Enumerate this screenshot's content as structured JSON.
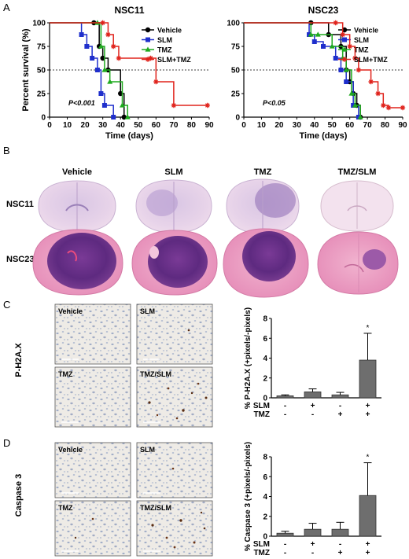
{
  "panels": {
    "A": {
      "letter": "A"
    },
    "B": {
      "letter": "B",
      "columns": [
        "Vehicle",
        "SLM",
        "TMZ",
        "TMZ/SLM"
      ],
      "rows": [
        "NSC11",
        "NSC23"
      ]
    },
    "C": {
      "letter": "C",
      "row_label": "P-H2A.X",
      "tiles": [
        "Vehicle",
        "SLM",
        "TMZ",
        "TMZ/SLM"
      ]
    },
    "D": {
      "letter": "D",
      "row_label": "Caspase 3",
      "tiles": [
        "Vehicle",
        "SLM",
        "TMZ",
        "TMZ/SLM"
      ]
    }
  },
  "colors": {
    "Vehicle": "#000000",
    "SLM": "#1f2fcc",
    "TMZ": "#1faa1f",
    "SLM+TMZ": "#e0231c",
    "bar": "#6e6e6e"
  },
  "chart_data": [
    {
      "type": "line",
      "title": "NSC11",
      "xlabel": "Time (days)",
      "ylabel": "Percent survival (%)",
      "xlim": [
        0,
        90
      ],
      "ylim": [
        0,
        100
      ],
      "xticks": [
        0,
        10,
        20,
        30,
        40,
        50,
        60,
        70,
        80,
        90
      ],
      "yticks": [
        0,
        25,
        50,
        75,
        100
      ],
      "reference_line": 50,
      "annotation": "P<0.001",
      "series": [
        {
          "name": "Vehicle",
          "color": "#000000",
          "marker": "circle",
          "x": [
            0,
            25,
            28,
            30,
            33,
            40,
            42
          ],
          "y": [
            100,
            100,
            75,
            62.5,
            50,
            25,
            0
          ]
        },
        {
          "name": "SLM",
          "color": "#1f2fcc",
          "marker": "square",
          "x": [
            0,
            18,
            21,
            24,
            27,
            29,
            31,
            36
          ],
          "y": [
            100,
            87.5,
            75,
            62.5,
            50,
            25,
            12.5,
            0
          ]
        },
        {
          "name": "TMZ",
          "color": "#1faa1f",
          "marker": "triangle",
          "x": [
            0,
            27,
            29,
            31,
            34,
            41,
            44
          ],
          "y": [
            100,
            100,
            75,
            50,
            37.5,
            12.5,
            0
          ]
        },
        {
          "name": "SLM+TMZ",
          "color": "#e0231c",
          "marker": "star",
          "x": [
            0,
            30,
            33,
            36,
            39,
            57,
            60,
            70,
            89
          ],
          "y": [
            100,
            100,
            87.5,
            75,
            62.5,
            62.5,
            37.5,
            12.5,
            12.5
          ]
        }
      ]
    },
    {
      "type": "line",
      "title": "NSC23",
      "xlabel": "Time (days)",
      "ylabel": "",
      "xlim": [
        0,
        90
      ],
      "ylim": [
        0,
        100
      ],
      "xticks": [
        0,
        10,
        20,
        30,
        40,
        50,
        60,
        70,
        80,
        90
      ],
      "yticks": [
        0,
        25,
        50,
        75,
        100
      ],
      "reference_line": 50,
      "annotation": "P<0.05",
      "series": [
        {
          "name": "Vehicle",
          "color": "#000000",
          "marker": "circle",
          "x": [
            0,
            38,
            48,
            55,
            58,
            60,
            62,
            64,
            66
          ],
          "y": [
            100,
            100,
            87.5,
            75,
            50,
            37.5,
            25,
            12.5,
            0
          ]
        },
        {
          "name": "SLM",
          "color": "#1f2fcc",
          "marker": "square",
          "x": [
            0,
            37,
            40,
            45,
            52,
            55,
            58,
            62,
            65
          ],
          "y": [
            100,
            87.5,
            80,
            75,
            62.5,
            50,
            37.5,
            12.5,
            0
          ]
        },
        {
          "name": "TMZ",
          "color": "#1faa1f",
          "marker": "triangle",
          "x": [
            0,
            38,
            42,
            50,
            56,
            58,
            61,
            63,
            66
          ],
          "y": [
            100,
            87.5,
            87.5,
            75,
            62.5,
            50,
            25,
            12.5,
            0
          ]
        },
        {
          "name": "SLM+TMZ",
          "color": "#e0231c",
          "marker": "star",
          "x": [
            0,
            52,
            56,
            60,
            63,
            65,
            72,
            76,
            79,
            82,
            90
          ],
          "y": [
            100,
            100,
            87.5,
            75,
            62.5,
            50,
            37.5,
            25,
            12.5,
            10,
            10
          ]
        }
      ]
    },
    {
      "type": "bar",
      "ylabel": "% P-H2A.X (+pixels/-pixels)",
      "ylim": [
        0,
        8
      ],
      "yticks": [
        0,
        2,
        4,
        6,
        8
      ],
      "categories": [
        "Vehicle",
        "SLM",
        "TMZ",
        "TMZ/SLM"
      ],
      "values": [
        0.2,
        0.6,
        0.3,
        3.8
      ],
      "errors": [
        0.1,
        0.3,
        0.25,
        2.7
      ],
      "significance": [
        "",
        "",
        "",
        "*"
      ],
      "factor_rows": [
        {
          "label": "SLM",
          "signs": [
            "-",
            "+",
            "-",
            "+"
          ]
        },
        {
          "label": "TMZ",
          "signs": [
            "-",
            "-",
            "+",
            "+"
          ]
        }
      ]
    },
    {
      "type": "bar",
      "ylabel": "% Caspase 3 (+pixels/-pixels)",
      "ylim": [
        0,
        8
      ],
      "yticks": [
        0,
        2,
        4,
        6,
        8
      ],
      "categories": [
        "Vehicle",
        "SLM",
        "TMZ",
        "TMZ/SLM"
      ],
      "values": [
        0.3,
        0.7,
        0.7,
        4.1
      ],
      "errors": [
        0.2,
        0.6,
        0.7,
        3.3
      ],
      "significance": [
        "",
        "",
        "",
        "*"
      ],
      "factor_rows": [
        {
          "label": "SLM",
          "signs": [
            "-",
            "+",
            "-",
            "+"
          ]
        },
        {
          "label": "TMZ",
          "signs": [
            "-",
            "-",
            "+",
            "+"
          ]
        }
      ]
    }
  ]
}
